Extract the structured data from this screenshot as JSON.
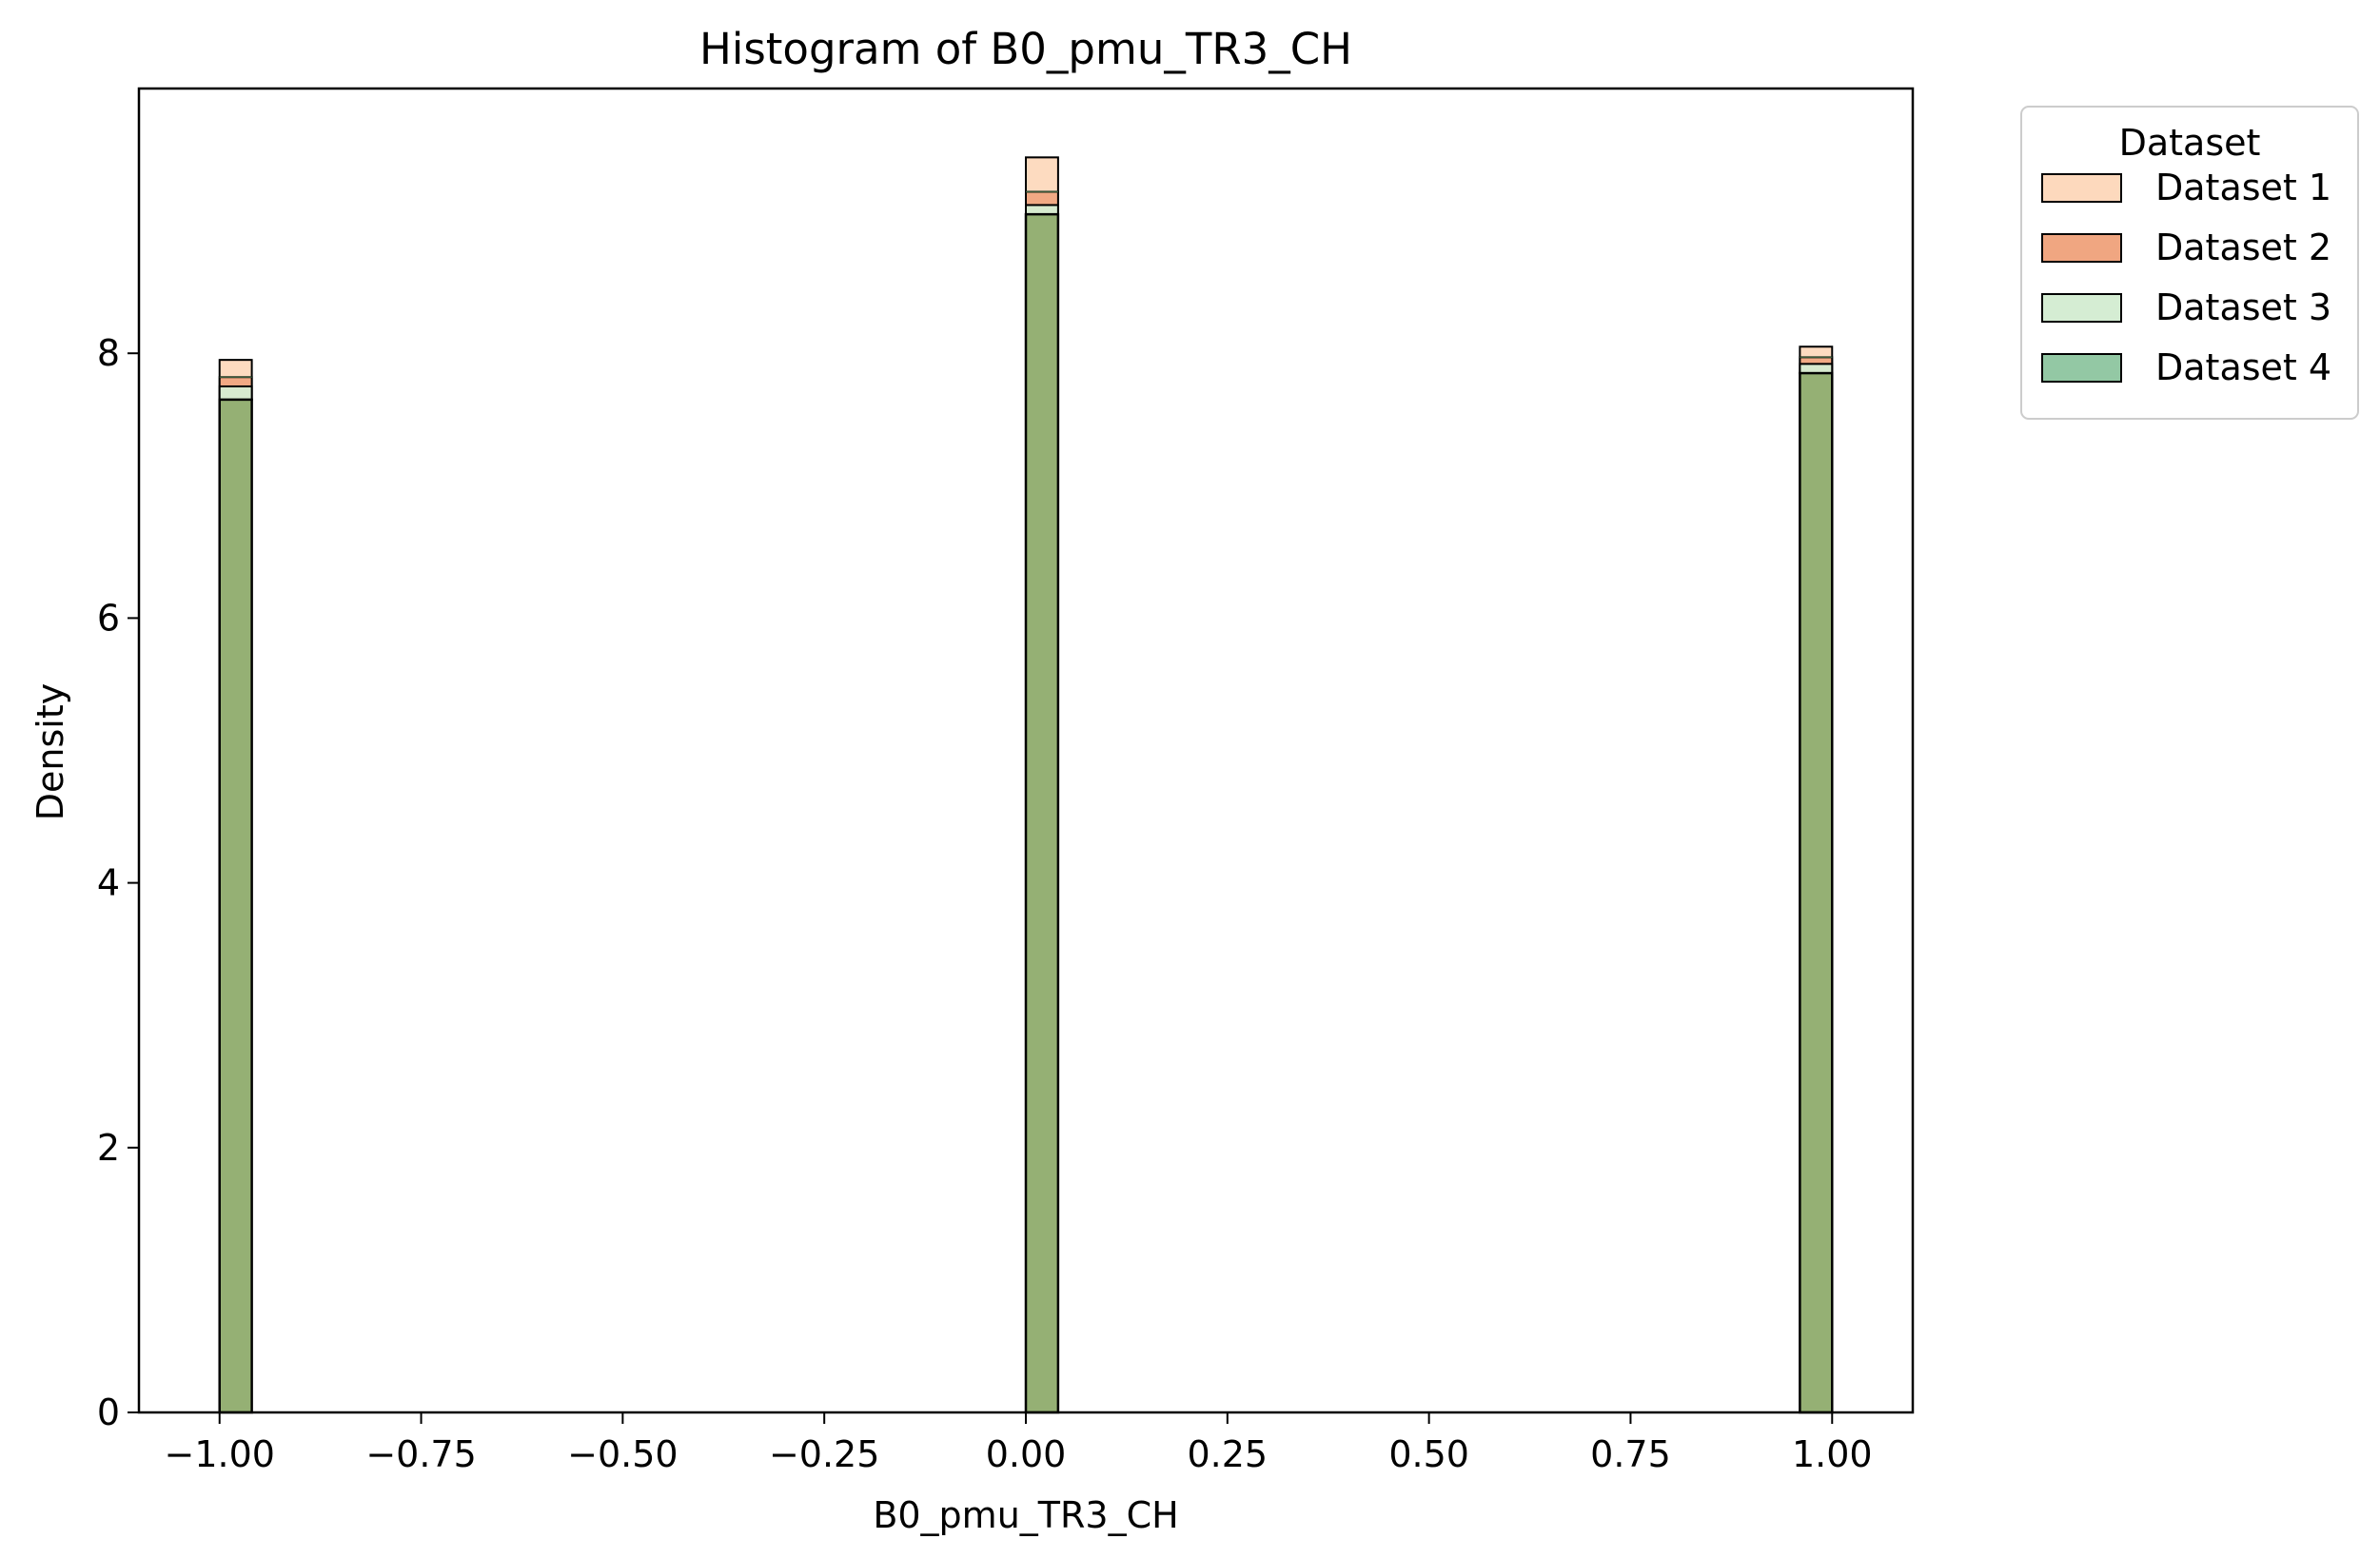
{
  "chart_data": {
    "type": "bar",
    "title": "Histogram of B0_pmu_TR3_CH",
    "xlabel": "B0_pmu_TR3_CH",
    "ylabel": "Density",
    "xlim": [
      -1.1,
      1.1
    ],
    "ylim": [
      0,
      10
    ],
    "bin_width": 0.04,
    "x_ticks": [
      -1.0,
      -0.75,
      -0.5,
      -0.25,
      0.0,
      0.25,
      0.5,
      0.75,
      1.0
    ],
    "x_tick_labels": [
      "−1.00",
      "−0.75",
      "−0.50",
      "−0.25",
      "0.00",
      "0.25",
      "0.50",
      "0.75",
      "1.00"
    ],
    "y_ticks": [
      0,
      2,
      4,
      6,
      8
    ],
    "y_tick_labels": [
      "0",
      "2",
      "4",
      "6",
      "8"
    ],
    "grid": false,
    "legend": {
      "title": "Dataset",
      "placement": "outside-top-right"
    },
    "bins": [
      -1.0,
      0.0,
      0.96
    ],
    "series": [
      {
        "name": "Dataset 1",
        "color": "#fdd9bd",
        "values": [
          7.95,
          9.48,
          8.05
        ]
      },
      {
        "name": "Dataset 2",
        "color": "#f0a681",
        "values": [
          7.82,
          9.22,
          7.97
        ]
      },
      {
        "name": "Dataset 3",
        "color": "#d5edd3",
        "values": [
          7.75,
          9.12,
          7.92
        ]
      },
      {
        "name": "Dataset 4",
        "color": "#93c8a4",
        "values": [
          7.65,
          9.05,
          7.85
        ]
      }
    ],
    "overlap_color": "#95b074"
  }
}
